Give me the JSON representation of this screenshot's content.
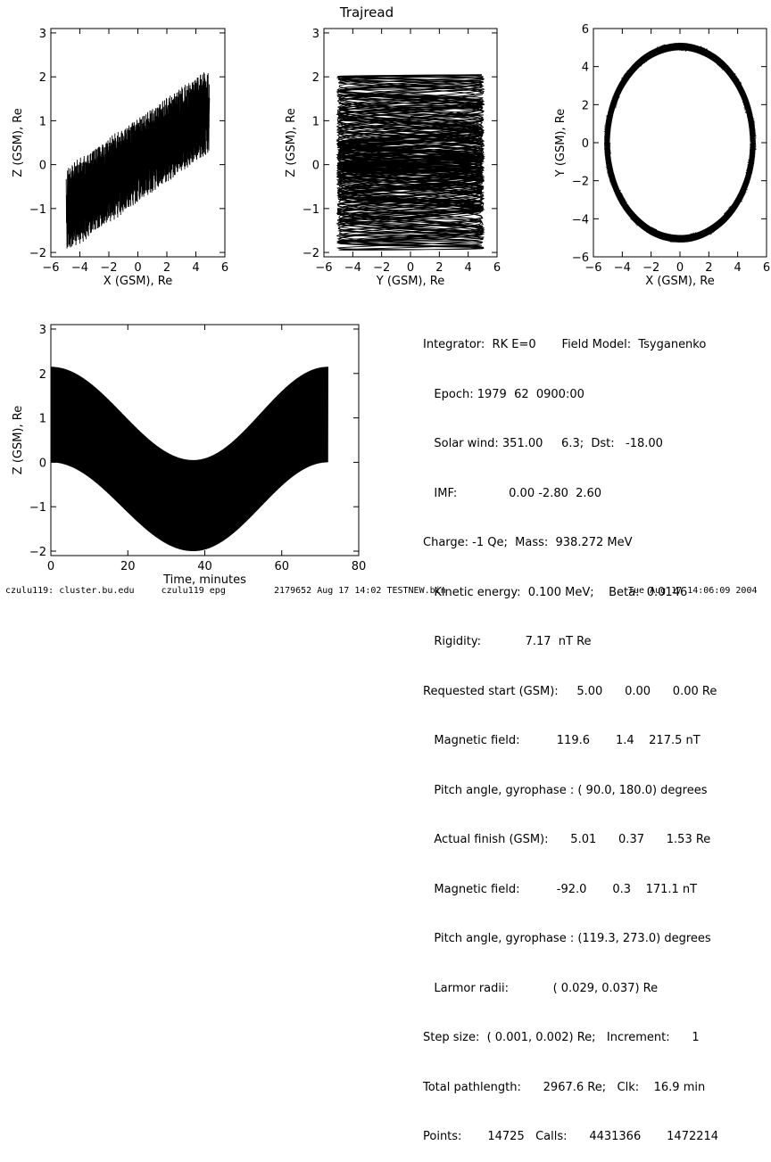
{
  "title": "Trajread",
  "chart_data": [
    {
      "type": "line",
      "panel": "top-left",
      "xlabel": "X (GSM), Re",
      "ylabel": "Z (GSM), Re",
      "xlim": [
        -6,
        6
      ],
      "ylim": [
        -2.1,
        3.1
      ],
      "xticks": [
        -6,
        -4,
        -2,
        0,
        2,
        4,
        6
      ],
      "yticks": [
        -2,
        -1,
        0,
        1,
        2,
        3
      ],
      "series": [
        {
          "description": "dense gyrating trace, parallelogram band",
          "x_range": [
            -4.8,
            5.2
          ],
          "y_range": [
            -2.0,
            2.2
          ]
        }
      ]
    },
    {
      "type": "line",
      "panel": "top-middle",
      "xlabel": "Y (GSM), Re",
      "ylabel": "Z (GSM), Re",
      "xlim": [
        -6,
        6
      ],
      "ylim": [
        -2.1,
        3.1
      ],
      "xticks": [
        -6,
        -4,
        -2,
        0,
        2,
        4,
        6
      ],
      "yticks": [
        -2,
        -1,
        0,
        1,
        2,
        3
      ],
      "series": [
        {
          "description": "dense cylindrical band",
          "x_range": [
            -5.2,
            5.2
          ],
          "y_range": [
            -2.0,
            2.2
          ]
        }
      ]
    },
    {
      "type": "line",
      "panel": "top-right",
      "xlabel": "X (GSM), Re",
      "ylabel": "Y (GSM), Re",
      "xlim": [
        -6,
        6
      ],
      "ylim": [
        -6,
        6
      ],
      "xticks": [
        -6,
        -4,
        -2,
        0,
        2,
        4,
        6
      ],
      "yticks": [
        -6,
        -4,
        -2,
        0,
        2,
        4,
        6
      ],
      "series": [
        {
          "description": "near-circular ring",
          "radius_range": [
            4.9,
            5.3
          ]
        }
      ]
    },
    {
      "type": "line",
      "panel": "bottom-left",
      "xlabel": "Time, minutes",
      "ylabel": "Z (GSM), Re",
      "xlim": [
        0,
        80
      ],
      "ylim": [
        -2.1,
        3.1
      ],
      "xticks": [
        0,
        20,
        40,
        60,
        80
      ],
      "yticks": [
        -2,
        -1,
        0,
        1,
        2,
        3
      ],
      "series": [
        {
          "description": "rapidly oscillating band",
          "x_range": [
            0,
            72
          ],
          "upper_envelope": "2.1 to 0 (min near t=37) and back to 2.1",
          "lower_envelope": "0 to -2.0 (min near t=37) and back to 0"
        }
      ]
    }
  ],
  "info": {
    "lines": [
      "Integrator:  RK E=0       Field Model:  Tsyganenko",
      "   Epoch: 1979  62  0900:00",
      "   Solar wind: 351.00     6.3;  Dst:   -18.00",
      "   IMF:              0.00 -2.80  2.60",
      "Charge: -1 Qe;  Mass:  938.272 MeV",
      "   Kinetic energy:  0.100 MeV;    Beta:  0.0146",
      "   Rigidity:            7.17  nT Re",
      "Requested start (GSM):     5.00      0.00      0.00 Re",
      "   Magnetic field:          119.6       1.4    217.5 nT",
      "   Pitch angle, gyrophase : ( 90.0, 180.0) degrees",
      "   Actual finish (GSM):      5.01      0.37      1.53 Re",
      "   Magnetic field:          -92.0       0.3    171.1 nT",
      "   Pitch angle, gyrophase : (119.3, 273.0) degrees",
      "   Larmor radii:            ( 0.029, 0.037) Re",
      "Step size:  ( 0.001, 0.002) Re;   Increment:      1",
      "Total pathlength:      2967.6 Re;   Clk:    16.9 min",
      "Points:       14725   Calls:      4431366       1472214"
    ]
  },
  "footer": {
    "left": "czulu119: cluster.bu.edu     czulu119 epg         2179652 Aug 17 14:02 TESTNEW.bin",
    "right": "Tue Aug 17 14:06:09 2004"
  }
}
